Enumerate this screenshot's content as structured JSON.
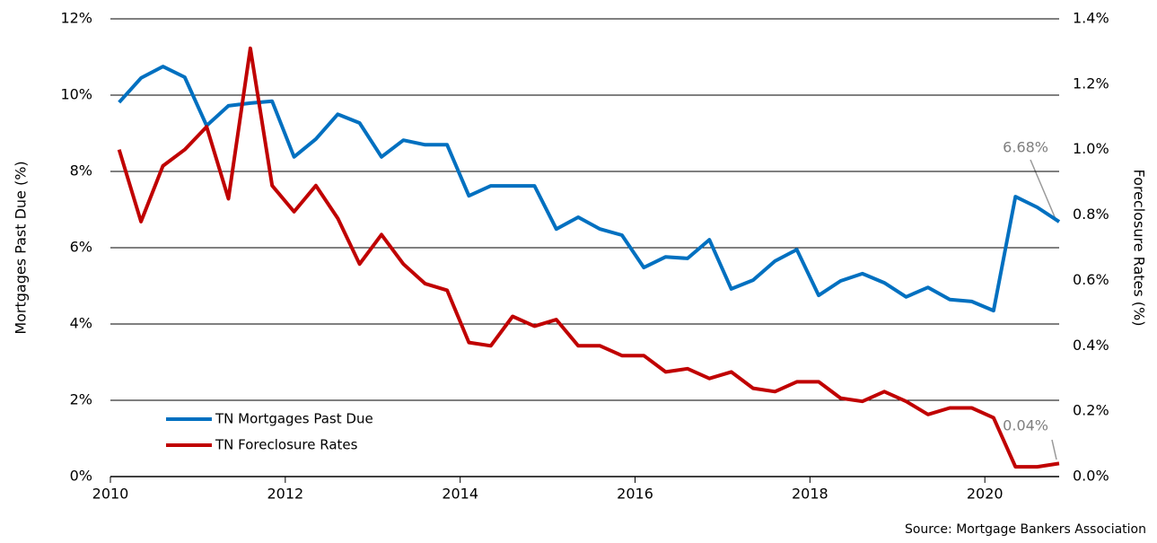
{
  "chart_data": {
    "type": "line",
    "y_label": "Mortgages Past Due (%)",
    "y2_label": "Foreclosure Rates (%)",
    "source": "Source: Mortgage Bankers Association",
    "x": [
      2010.1,
      2010.35,
      2010.6,
      2010.85,
      2011.1,
      2011.35,
      2011.6,
      2011.85,
      2012.1,
      2012.35,
      2012.6,
      2012.85,
      2013.1,
      2013.35,
      2013.6,
      2013.85,
      2014.1,
      2014.35,
      2014.6,
      2014.85,
      2015.1,
      2015.35,
      2015.6,
      2015.85,
      2016.1,
      2016.35,
      2016.6,
      2016.85,
      2017.1,
      2017.35,
      2017.6,
      2017.85,
      2018.1,
      2018.35,
      2018.6,
      2018.85,
      2019.1,
      2019.35,
      2019.6,
      2019.85,
      2020.1,
      2020.35,
      2020.6,
      2020.85
    ],
    "series": [
      {
        "name": "TN Mortgages Past Due",
        "color": "#0070c0",
        "axis": "y",
        "values": [
          9.81,
          10.45,
          10.75,
          10.47,
          9.2,
          9.72,
          9.79,
          9.84,
          8.38,
          8.85,
          9.5,
          9.27,
          8.38,
          8.82,
          8.7,
          8.7,
          7.36,
          7.62,
          7.62,
          7.62,
          6.49,
          6.8,
          6.49,
          6.33,
          5.48,
          5.76,
          5.72,
          6.21,
          4.92,
          5.15,
          5.65,
          5.95,
          4.75,
          5.13,
          5.32,
          5.08,
          4.71,
          4.96,
          4.64,
          4.59,
          4.35,
          7.34,
          7.06,
          6.68
        ],
        "value_labels": [
          null,
          null,
          null,
          null,
          null,
          null,
          null,
          null,
          null,
          null,
          null,
          null,
          null,
          null,
          null,
          null,
          null,
          null,
          null,
          null,
          null,
          null,
          null,
          null,
          null,
          null,
          null,
          null,
          null,
          null,
          null,
          null,
          null,
          null,
          null,
          null,
          null,
          null,
          null,
          null,
          null,
          null,
          null,
          "6.68%"
        ]
      },
      {
        "name": "TN Foreclosure Rates",
        "color": "#c00000",
        "axis": "y2",
        "values": [
          1.0,
          0.78,
          0.95,
          1.0,
          1.07,
          0.85,
          1.31,
          0.89,
          0.81,
          0.89,
          0.79,
          0.65,
          0.74,
          0.65,
          0.59,
          0.57,
          0.41,
          0.4,
          0.49,
          0.46,
          0.48,
          0.4,
          0.4,
          0.37,
          0.37,
          0.32,
          0.33,
          0.3,
          0.32,
          0.27,
          0.26,
          0.29,
          0.29,
          0.24,
          0.23,
          0.26,
          0.23,
          0.19,
          0.21,
          0.21,
          0.18,
          0.03,
          0.03,
          0.04
        ],
        "value_labels": [
          null,
          null,
          null,
          null,
          null,
          null,
          null,
          null,
          null,
          null,
          null,
          null,
          null,
          null,
          null,
          null,
          null,
          null,
          null,
          null,
          null,
          null,
          null,
          null,
          null,
          null,
          null,
          null,
          null,
          null,
          null,
          null,
          null,
          null,
          null,
          null,
          null,
          null,
          null,
          null,
          null,
          null,
          null,
          "0.04%"
        ]
      }
    ],
    "xlim": [
      2010,
      2020.85
    ],
    "xticks": [
      2010,
      2012,
      2014,
      2016,
      2018,
      2020
    ],
    "ylim": [
      0,
      12
    ],
    "yticks": [
      {
        "value": 0,
        "label": "0%"
      },
      {
        "value": 2,
        "label": "2%"
      },
      {
        "value": 4,
        "label": "4%"
      },
      {
        "value": 6,
        "label": "6%"
      },
      {
        "value": 8,
        "label": "8%"
      },
      {
        "value": 10,
        "label": "10%"
      },
      {
        "value": 12,
        "label": "12%"
      }
    ],
    "y2lim": [
      0,
      1.4
    ],
    "y2ticks": [
      {
        "value": 0,
        "label": "0.0%"
      },
      {
        "value": 0.2,
        "label": "0.2%"
      },
      {
        "value": 0.4,
        "label": "0.4%"
      },
      {
        "value": 0.6,
        "label": "0.6%"
      },
      {
        "value": 0.8,
        "label": "0.8%"
      },
      {
        "value": 1.0,
        "label": "1.0%"
      },
      {
        "value": 1.2,
        "label": "1.2%"
      },
      {
        "value": 1.4,
        "label": "1.4%"
      }
    ],
    "grid": true,
    "legend": "lower left"
  }
}
